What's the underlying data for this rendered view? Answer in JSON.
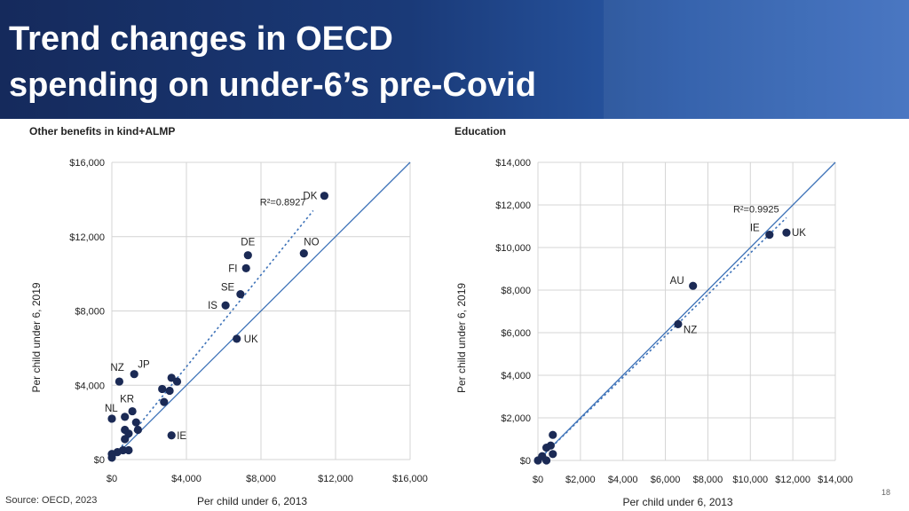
{
  "slide": {
    "title_line1": "Trend changes in OECD",
    "title_line2": "spending on under-6’s pre-Covid",
    "source": "Source: OECD, 2023",
    "page_number": "18"
  },
  "colors": {
    "point": "#1b2a55",
    "fit_line": "#3d72b8",
    "grid": "#d4d4d4"
  },
  "chart_data": [
    {
      "type": "scatter",
      "title": "Other benefits in kind+ALMP",
      "xlabel": "Per child under 6, 2013",
      "ylabel": "Per child under 6, 2019",
      "xlim": [
        0,
        16000
      ],
      "ylim": [
        0,
        16000
      ],
      "xticks": [
        0,
        4000,
        8000,
        12000,
        16000
      ],
      "xtick_labels": [
        "$0",
        "$4,000",
        "$8,000",
        "$12,000",
        "$16,000"
      ],
      "yticks": [
        0,
        4000,
        8000,
        12000,
        16000
      ],
      "ytick_labels": [
        "$0",
        "$4,000",
        "$8,000",
        "$12,000",
        "$16,000"
      ],
      "grid": true,
      "reference_line": "y = x",
      "trendline": {
        "label": "R²=0.8927",
        "x": [
          200,
          10800
        ],
        "y": [
          300,
          13400
        ]
      },
      "points": [
        {
          "x": 11400,
          "y": 14200,
          "label": "DK"
        },
        {
          "x": 10300,
          "y": 11100,
          "label": "NO"
        },
        {
          "x": 7300,
          "y": 11000,
          "label": "DE"
        },
        {
          "x": 7200,
          "y": 10300,
          "label": "FI"
        },
        {
          "x": 6900,
          "y": 8900,
          "label": "SE"
        },
        {
          "x": 6100,
          "y": 8300,
          "label": "IS"
        },
        {
          "x": 6700,
          "y": 6500,
          "label": "UK"
        },
        {
          "x": 1200,
          "y": 4600,
          "label": "JP"
        },
        {
          "x": 400,
          "y": 4200,
          "label": "NZ"
        },
        {
          "x": 1100,
          "y": 2600,
          "label": "KR"
        },
        {
          "x": 0,
          "y": 2200,
          "label": "NL"
        },
        {
          "x": 3200,
          "y": 1300,
          "label": "IE"
        },
        {
          "x": 3200,
          "y": 4400,
          "label": ""
        },
        {
          "x": 3500,
          "y": 4200,
          "label": ""
        },
        {
          "x": 2700,
          "y": 3800,
          "label": ""
        },
        {
          "x": 3100,
          "y": 3700,
          "label": ""
        },
        {
          "x": 2800,
          "y": 3100,
          "label": ""
        },
        {
          "x": 700,
          "y": 2300,
          "label": ""
        },
        {
          "x": 1300,
          "y": 2000,
          "label": ""
        },
        {
          "x": 1400,
          "y": 1600,
          "label": ""
        },
        {
          "x": 700,
          "y": 1600,
          "label": ""
        },
        {
          "x": 900,
          "y": 1400,
          "label": ""
        },
        {
          "x": 700,
          "y": 1100,
          "label": ""
        },
        {
          "x": 600,
          "y": 500,
          "label": ""
        },
        {
          "x": 900,
          "y": 500,
          "label": ""
        },
        {
          "x": 300,
          "y": 400,
          "label": ""
        },
        {
          "x": 0,
          "y": 300,
          "label": ""
        },
        {
          "x": 0,
          "y": 100,
          "label": ""
        }
      ]
    },
    {
      "type": "scatter",
      "title": "Education",
      "xlabel": "Per child under 6, 2013",
      "ylabel": "Per child under 6, 2019",
      "xlim": [
        0,
        14000
      ],
      "ylim": [
        0,
        14000
      ],
      "xticks": [
        0,
        2000,
        4000,
        6000,
        8000,
        10000,
        12000,
        14000
      ],
      "xtick_labels": [
        "$0",
        "$2,000",
        "$4,000",
        "$6,000",
        "$8,000",
        "$10,000",
        "$12,000",
        "$14,000"
      ],
      "yticks": [
        0,
        2000,
        4000,
        6000,
        8000,
        10000,
        12000,
        14000
      ],
      "ytick_labels": [
        "$0",
        "$2,000",
        "$4,000",
        "$6,000",
        "$8,000",
        "$10,000",
        "$12,000",
        "$14,000"
      ],
      "grid": true,
      "reference_line": "y = x",
      "trendline": {
        "label": "R²=0.9925",
        "x": [
          0,
          11700
        ],
        "y": [
          0,
          11400
        ]
      },
      "points": [
        {
          "x": 11700,
          "y": 10700,
          "label": "UK"
        },
        {
          "x": 10900,
          "y": 10600,
          "label": "IE"
        },
        {
          "x": 7300,
          "y": 8200,
          "label": "AU"
        },
        {
          "x": 6600,
          "y": 6400,
          "label": "NZ"
        },
        {
          "x": 700,
          "y": 1200,
          "label": ""
        },
        {
          "x": 600,
          "y": 700,
          "label": ""
        },
        {
          "x": 400,
          "y": 600,
          "label": ""
        },
        {
          "x": 700,
          "y": 300,
          "label": ""
        },
        {
          "x": 200,
          "y": 200,
          "label": ""
        },
        {
          "x": 400,
          "y": 0,
          "label": ""
        },
        {
          "x": 0,
          "y": 0,
          "label": ""
        }
      ]
    }
  ]
}
